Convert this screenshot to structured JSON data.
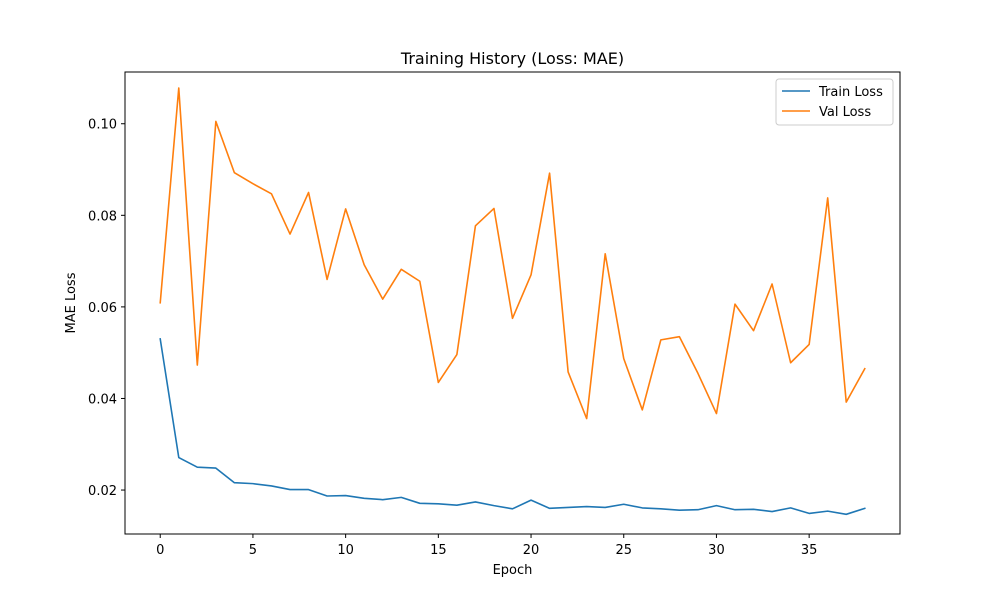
{
  "chart_data": {
    "type": "line",
    "title": "Training History (Loss: MAE)",
    "xlabel": "Epoch",
    "ylabel": "MAE Loss",
    "xlim": [
      -1.9,
      39.9
    ],
    "ylim": [
      0.0104,
      0.1113
    ],
    "xticks": [
      0,
      5,
      10,
      15,
      20,
      25,
      30,
      35
    ],
    "yticks": [
      0.02,
      0.04,
      0.06,
      0.08,
      0.1
    ],
    "ytick_labels": [
      "0.02",
      "0.04",
      "0.06",
      "0.08",
      "0.10"
    ],
    "grid": false,
    "legend_position": "top-right",
    "x": [
      0,
      1,
      2,
      3,
      4,
      5,
      6,
      7,
      8,
      9,
      10,
      11,
      12,
      13,
      14,
      15,
      16,
      17,
      18,
      19,
      20,
      21,
      22,
      23,
      24,
      25,
      26,
      27,
      28,
      29,
      30,
      31,
      32,
      33,
      34,
      35,
      36,
      37,
      38
    ],
    "series": [
      {
        "name": "Train Loss",
        "color": "#1f77b4",
        "values": [
          0.053,
          0.0271,
          0.025,
          0.0248,
          0.0216,
          0.0214,
          0.0209,
          0.0201,
          0.0201,
          0.0187,
          0.0188,
          0.0182,
          0.0179,
          0.0184,
          0.0171,
          0.017,
          0.0167,
          0.0174,
          0.0166,
          0.0159,
          0.0178,
          0.016,
          0.0162,
          0.0164,
          0.0162,
          0.0169,
          0.0161,
          0.0159,
          0.0156,
          0.0157,
          0.0166,
          0.0157,
          0.0158,
          0.0153,
          0.0161,
          0.0149,
          0.0154,
          0.0147,
          0.016
        ]
      },
      {
        "name": "Val Loss",
        "color": "#ff7f0e",
        "values": [
          0.0609,
          0.1078,
          0.0473,
          0.1005,
          0.0893,
          0.0869,
          0.0847,
          0.0759,
          0.085,
          0.066,
          0.0814,
          0.0692,
          0.0617,
          0.0682,
          0.0656,
          0.0435,
          0.0496,
          0.0777,
          0.0815,
          0.0575,
          0.067,
          0.0892,
          0.0458,
          0.0356,
          0.0716,
          0.0487,
          0.0375,
          0.0528,
          0.0535,
          0.0455,
          0.0367,
          0.0606,
          0.0548,
          0.065,
          0.0478,
          0.0518,
          0.0838,
          0.0392,
          0.0465
        ]
      }
    ]
  }
}
